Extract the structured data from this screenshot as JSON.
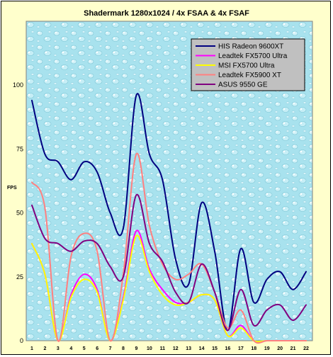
{
  "chart_data": {
    "type": "line",
    "title": "Shadermark 1280x1024 / 4x FSAA & 4x FSAF",
    "xlabel": "",
    "ylabel": "FPS",
    "x": [
      1,
      2,
      3,
      4,
      5,
      6,
      7,
      8,
      9,
      10,
      11,
      12,
      13,
      14,
      15,
      16,
      17,
      18,
      19,
      20,
      21,
      22
    ],
    "x_tick_labels": [
      "1",
      "2",
      "3",
      "4",
      "5",
      "6",
      "7",
      "8",
      "9",
      "10",
      "11",
      "12",
      "13",
      "14",
      "15",
      "16",
      "17",
      "18",
      "19",
      "20",
      "21",
      "22"
    ],
    "ylim": [
      0,
      125
    ],
    "y_ticks": [
      0,
      25,
      50,
      75,
      100
    ],
    "y_tick_labels": [
      "0",
      "25",
      "50",
      "75",
      "100"
    ],
    "grid": false,
    "legend_position": "top-right",
    "plot_background": "light blue water-droplet texture",
    "frame_background": "#ffffcc",
    "series": [
      {
        "name": "HIS Radeon 9600XT",
        "color": "#000080",
        "values": [
          94,
          73,
          70,
          63,
          70,
          66,
          50,
          44,
          96,
          73,
          63,
          32,
          22,
          54,
          35,
          4,
          36,
          15,
          24,
          27,
          20,
          27
        ]
      },
      {
        "name": "Leadtek FX5700 Ultra",
        "color": "#ff00ff",
        "values": [
          38,
          26,
          0,
          18,
          26,
          20,
          0,
          17,
          43,
          28,
          20,
          15,
          15,
          18,
          16,
          2,
          6,
          0,
          0,
          0,
          0,
          0
        ]
      },
      {
        "name": "MSI FX5700 Ultra",
        "color": "#ffff00",
        "values": [
          38,
          26,
          0,
          17,
          24,
          19,
          0,
          16,
          41,
          27,
          18,
          14,
          15,
          18,
          16,
          2,
          5,
          0,
          0,
          0,
          0,
          0
        ]
      },
      {
        "name": "Leadtek FX5900 XT",
        "color": "#ff8080",
        "values": [
          62,
          52,
          0,
          33,
          42,
          35,
          0,
          26,
          73,
          45,
          30,
          24,
          26,
          30,
          19,
          5,
          12,
          0,
          0,
          0,
          0,
          0
        ]
      },
      {
        "name": "ASUS 9550 GE",
        "color": "#800080",
        "values": [
          53,
          40,
          38,
          35,
          39,
          38,
          29,
          25,
          57,
          38,
          31,
          19,
          15,
          30,
          19,
          4,
          20,
          6,
          12,
          14,
          8,
          14
        ]
      }
    ]
  }
}
